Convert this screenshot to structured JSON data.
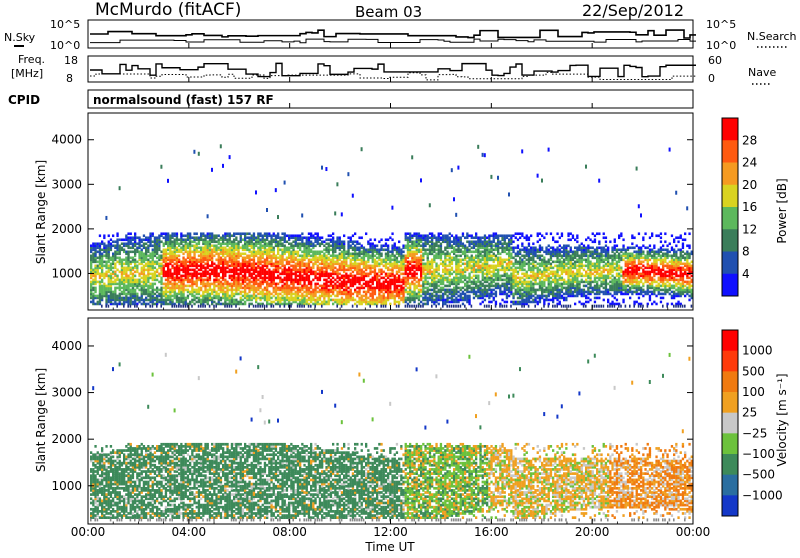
{
  "header": {
    "station": "McMurdo (fitACF)",
    "beam": "Beam 03",
    "date": "22/Sep/2012"
  },
  "noise_panel": {
    "left_label": "N.Sky",
    "right_label": "N.Search",
    "ticks_left": [
      "10^5",
      "10^0"
    ],
    "ticks_right": [
      "10^5",
      "10^0"
    ]
  },
  "freq_panel": {
    "left_label_line1": "Freq.",
    "left_label_line2": "[MHz]",
    "right_label": "Nave",
    "ticks_left": [
      "18",
      "8"
    ],
    "ticks_right": [
      "60",
      "0"
    ]
  },
  "cpid_panel": {
    "label": "CPID",
    "text": "normalsound (fast) 157 RF"
  },
  "chart_data": [
    {
      "type": "heatmap",
      "ylabel": "Slant Range [km]",
      "y_ticks": [
        1000,
        2000,
        3000,
        4000
      ],
      "ylim": [
        180,
        4600
      ],
      "colorbar": {
        "label": "Power [dB]",
        "ticks": [
          4,
          8,
          12,
          16,
          20,
          24,
          28
        ],
        "colors": [
          "#1010ff",
          "#2050b0",
          "#3a7d5a",
          "#5cb85c",
          "#d9d320",
          "#f59a20",
          "#ff5a10",
          "#ff0000"
        ]
      }
    },
    {
      "type": "heatmap",
      "ylabel": "Slant Range [km]",
      "y_ticks": [
        1000,
        2000,
        3000,
        4000
      ],
      "ylim": [
        180,
        4600
      ],
      "colorbar": {
        "label": "Velocity [m s⁻¹]",
        "ticks": [
          1000,
          500,
          100,
          25,
          -25,
          -100,
          -500,
          -1000
        ],
        "colors": [
          "#1438c8",
          "#2a6ea0",
          "#3d8a5a",
          "#6cc23c",
          "#c8c8c8",
          "#f0a020",
          "#f07a10",
          "#ff3a0a",
          "#ff0000"
        ]
      }
    }
  ],
  "x_axis": {
    "label": "Time UT",
    "ticks": [
      "00:00",
      "04:00",
      "08:00",
      "12:00",
      "16:00",
      "20:00",
      "00:00"
    ]
  }
}
